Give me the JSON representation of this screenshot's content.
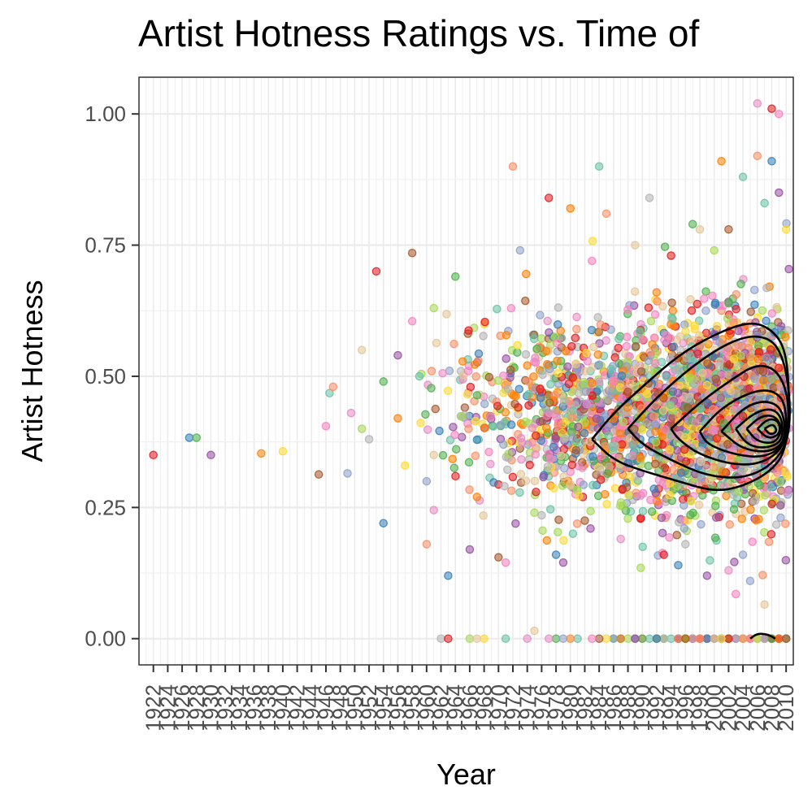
{
  "chart_data": {
    "type": "scatter",
    "title": "Artist Hotness Ratings vs. Time of",
    "xlabel": "Year",
    "ylabel": "Artist Hotness",
    "xlim": [
      1920,
      2011
    ],
    "ylim": [
      -0.05,
      1.07
    ],
    "y_ticks": [
      "0.00",
      "0.25",
      "0.50",
      "0.75",
      "1.00"
    ],
    "y_tick_values": [
      0,
      0.25,
      0.5,
      0.75,
      1.0
    ],
    "x_ticks": [
      1922,
      1924,
      1926,
      1928,
      1930,
      1932,
      1934,
      1936,
      1938,
      1940,
      1942,
      1944,
      1946,
      1948,
      1950,
      1952,
      1954,
      1956,
      1958,
      1960,
      1962,
      1964,
      1966,
      1968,
      1970,
      1972,
      1974,
      1976,
      1978,
      1980,
      1982,
      1984,
      1986,
      1988,
      1990,
      1992,
      1994,
      1996,
      1998,
      2000,
      2002,
      2004,
      2006,
      2008,
      2010
    ],
    "grid": true,
    "legend": "none",
    "point_palette": [
      "#e41a1c",
      "#377eb8",
      "#4daf4a",
      "#984ea3",
      "#ff7f00",
      "#ffd92f",
      "#a65628",
      "#f781bf",
      "#66c2a5",
      "#fc8d62",
      "#8da0cb",
      "#e78ac3",
      "#a6d854",
      "#e5c494",
      "#b3b3b3"
    ],
    "points": [
      [
        1922,
        0.35
      ],
      [
        1927,
        0.383
      ],
      [
        1928,
        0.383
      ],
      [
        1930,
        0.35
      ],
      [
        1937,
        0.353
      ],
      [
        1940,
        0.357
      ],
      [
        1945,
        0.313
      ],
      [
        1946,
        0.405
      ],
      [
        1946.5,
        0.468
      ],
      [
        1947,
        0.48
      ],
      [
        1949,
        0.315
      ],
      [
        1949.5,
        0.43
      ],
      [
        1951,
        0.4
      ],
      [
        1951,
        0.55
      ],
      [
        1952,
        0.38
      ],
      [
        1953,
        0.7
      ],
      [
        1954,
        0.22
      ],
      [
        1954,
        0.49
      ],
      [
        1956,
        0.54
      ],
      [
        1956,
        0.42
      ],
      [
        1957,
        0.33
      ],
      [
        1958,
        0.735
      ],
      [
        1958,
        0.605
      ],
      [
        1959,
        0.5
      ],
      [
        1960,
        0.18
      ],
      [
        1960,
        0.3
      ],
      [
        1961,
        0.245
      ],
      [
        1961,
        0.63
      ],
      [
        1961,
        0.35
      ],
      [
        1962,
        0.0
      ],
      [
        1963,
        0.0
      ],
      [
        1963,
        0.12
      ],
      [
        1964,
        0.69
      ],
      [
        1966,
        0.17
      ],
      [
        1967,
        0.27
      ],
      [
        1968,
        0.0
      ],
      [
        1970,
        0.155
      ],
      [
        1971,
        0.145
      ],
      [
        1971,
        0.0
      ],
      [
        1972,
        0.9
      ],
      [
        1973,
        0.74
      ],
      [
        1974,
        0.0
      ],
      [
        1975,
        0.24
      ],
      [
        1975,
        0.015
      ],
      [
        1976,
        0.235
      ],
      [
        1977,
        0.84
      ],
      [
        1978,
        0.16
      ],
      [
        1978,
        0.0
      ],
      [
        1979,
        0.145
      ],
      [
        1980,
        0.82
      ],
      [
        1980,
        0.0
      ],
      [
        1982,
        0.225
      ],
      [
        1983,
        0.72
      ],
      [
        1984,
        0.9
      ],
      [
        1985,
        0.81
      ],
      [
        1986,
        0.0
      ],
      [
        1987,
        0.19
      ],
      [
        1988,
        0.0
      ],
      [
        1989,
        0.75
      ],
      [
        1991,
        0.84
      ],
      [
        1993,
        0.16
      ],
      [
        1995,
        0.14
      ],
      [
        1997,
        0.79
      ],
      [
        1999,
        0.12
      ],
      [
        2001,
        0.91
      ],
      [
        2001,
        0.0
      ],
      [
        2002,
        0.78
      ],
      [
        2003,
        0.085
      ],
      [
        2004,
        0.88
      ],
      [
        2004,
        0.0
      ],
      [
        2005,
        0.11
      ],
      [
        2006,
        1.02
      ],
      [
        2006,
        0.0
      ],
      [
        2007,
        0.065
      ],
      [
        2007,
        0.0
      ],
      [
        2008,
        1.01
      ],
      [
        2008,
        0.91
      ],
      [
        2008,
        0.0
      ],
      [
        2009,
        0.85
      ],
      [
        2009,
        0.0
      ],
      [
        2010,
        0.78
      ],
      [
        2010,
        0.0
      ],
      [
        2009,
        1.0
      ],
      [
        2007,
        0.83
      ],
      [
        2006,
        0.92
      ],
      [
        2004,
        0.16
      ],
      [
        2002,
        0.13
      ],
      [
        2000,
        0.74
      ],
      [
        1998,
        0.78
      ],
      [
        1996,
        0.18
      ],
      [
        1994,
        0.73
      ],
      [
        1992,
        0.0
      ],
      [
        1990,
        0.0
      ],
      [
        1989,
        0.0
      ],
      [
        1987,
        0.0
      ],
      [
        1985,
        0.0
      ],
      [
        1984,
        0.0
      ],
      [
        1983,
        0.0
      ],
      [
        1981,
        0.0
      ],
      [
        1980,
        0.0
      ],
      [
        1979,
        0.0
      ],
      [
        1977,
        0.0
      ],
      [
        1966,
        0.0
      ],
      [
        1967,
        0.0
      ]
    ],
    "cloud": {
      "description_free": true,
      "seed": 17
    },
    "contour_levels": [
      [
        [
          1983,
          0.38
        ],
        [
          1986,
          0.43
        ],
        [
          1990,
          0.48
        ],
        [
          1995,
          0.54
        ],
        [
          2000,
          0.58
        ],
        [
          2005,
          0.605
        ],
        [
          2008,
          0.59
        ],
        [
          2010,
          0.55
        ],
        [
          2010.5,
          0.45
        ],
        [
          2010,
          0.36
        ],
        [
          2008,
          0.32
        ],
        [
          2004,
          0.29
        ],
        [
          2000,
          0.28
        ],
        [
          1995,
          0.3
        ],
        [
          1990,
          0.32
        ],
        [
          1986,
          0.34
        ],
        [
          1983,
          0.38
        ]
      ],
      [
        [
          1988,
          0.4
        ],
        [
          1992,
          0.46
        ],
        [
          1997,
          0.52
        ],
        [
          2002,
          0.565
        ],
        [
          2006,
          0.58
        ],
        [
          2009,
          0.56
        ],
        [
          2010.5,
          0.48
        ],
        [
          2010.5,
          0.38
        ],
        [
          2008,
          0.33
        ],
        [
          2004,
          0.305
        ],
        [
          1999,
          0.31
        ],
        [
          1994,
          0.34
        ],
        [
          1990,
          0.37
        ],
        [
          1988,
          0.4
        ]
      ],
      [
        [
          1994,
          0.4
        ],
        [
          1998,
          0.45
        ],
        [
          2002,
          0.49
        ],
        [
          2006,
          0.525
        ],
        [
          2009,
          0.51
        ],
        [
          2010.5,
          0.45
        ],
        [
          2010,
          0.37
        ],
        [
          2007,
          0.335
        ],
        [
          2003,
          0.33
        ],
        [
          1998,
          0.35
        ],
        [
          1995,
          0.38
        ],
        [
          1994,
          0.4
        ]
      ],
      [
        [
          1998,
          0.395
        ],
        [
          2001,
          0.44
        ],
        [
          2005,
          0.47
        ],
        [
          2008,
          0.475
        ],
        [
          2010,
          0.45
        ],
        [
          2010,
          0.37
        ],
        [
          2007,
          0.345
        ],
        [
          2003,
          0.35
        ],
        [
          1999,
          0.37
        ],
        [
          1998,
          0.395
        ]
      ],
      [
        [
          2001,
          0.395
        ],
        [
          2004,
          0.44
        ],
        [
          2007,
          0.455
        ],
        [
          2009.5,
          0.44
        ],
        [
          2010,
          0.38
        ],
        [
          2008,
          0.355
        ],
        [
          2004,
          0.36
        ],
        [
          2001,
          0.395
        ]
      ],
      [
        [
          2003,
          0.4
        ],
        [
          2005.5,
          0.43
        ],
        [
          2008,
          0.44
        ],
        [
          2009.5,
          0.42
        ],
        [
          2009.5,
          0.375
        ],
        [
          2007,
          0.362
        ],
        [
          2004.5,
          0.37
        ],
        [
          2003,
          0.4
        ]
      ],
      [
        [
          2004.5,
          0.4
        ],
        [
          2006.5,
          0.425
        ],
        [
          2008.5,
          0.425
        ],
        [
          2009.5,
          0.4
        ],
        [
          2008.5,
          0.372
        ],
        [
          2006,
          0.375
        ],
        [
          2004.5,
          0.4
        ]
      ],
      [
        [
          2006,
          0.4
        ],
        [
          2007.5,
          0.42
        ],
        [
          2009,
          0.415
        ],
        [
          2009.2,
          0.39
        ],
        [
          2007.5,
          0.38
        ],
        [
          2006,
          0.4
        ]
      ],
      [
        [
          2007,
          0.4
        ],
        [
          2008.2,
          0.41
        ],
        [
          2008.8,
          0.395
        ],
        [
          2007.8,
          0.388
        ],
        [
          2007,
          0.4
        ]
      ],
      [
        [
          2005,
          0.0
        ],
        [
          2006,
          0.01
        ],
        [
          2007.5,
          0.008
        ],
        [
          2008.5,
          0.0
        ]
      ]
    ]
  }
}
